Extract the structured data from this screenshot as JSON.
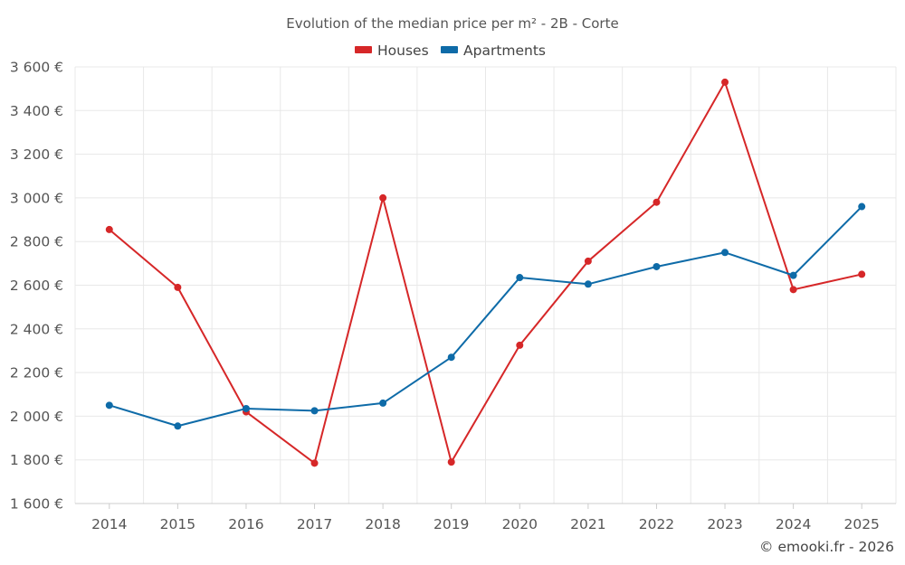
{
  "chart_data": {
    "type": "line",
    "title": "Evolution of the median price per m² - 2B - Corte",
    "categories": [
      "2014",
      "2015",
      "2016",
      "2017",
      "2018",
      "2019",
      "2020",
      "2021",
      "2022",
      "2023",
      "2024",
      "2025"
    ],
    "series": [
      {
        "name": "Houses",
        "color": "#d62728",
        "values": [
          2855,
          2590,
          2020,
          1785,
          3000,
          1790,
          2325,
          2710,
          2980,
          3530,
          2580,
          2650
        ]
      },
      {
        "name": "Apartments",
        "color": "#0e6ba8",
        "values": [
          2050,
          1955,
          2035,
          2025,
          2060,
          2270,
          2635,
          2605,
          2685,
          2750,
          2645,
          2960
        ]
      }
    ],
    "ylim": [
      1600,
      3600
    ],
    "yticks": [
      {
        "value": 1600,
        "label": "1 600 €"
      },
      {
        "value": 1800,
        "label": "1 800 €"
      },
      {
        "value": 2000,
        "label": "2 000 €"
      },
      {
        "value": 2200,
        "label": "2 200 €"
      },
      {
        "value": 2400,
        "label": "2 400 €"
      },
      {
        "value": 2600,
        "label": "2 600 €"
      },
      {
        "value": 2800,
        "label": "2 800 €"
      },
      {
        "value": 3000,
        "label": "3 000 €"
      },
      {
        "value": 3200,
        "label": "3 200 €"
      },
      {
        "value": 3400,
        "label": "3 400 €"
      },
      {
        "value": 3600,
        "label": "3 600 €"
      }
    ],
    "xlabel": "",
    "ylabel": "",
    "grid": true,
    "legend_position": "top-center",
    "credit": "© emooki.fr - 2026"
  }
}
